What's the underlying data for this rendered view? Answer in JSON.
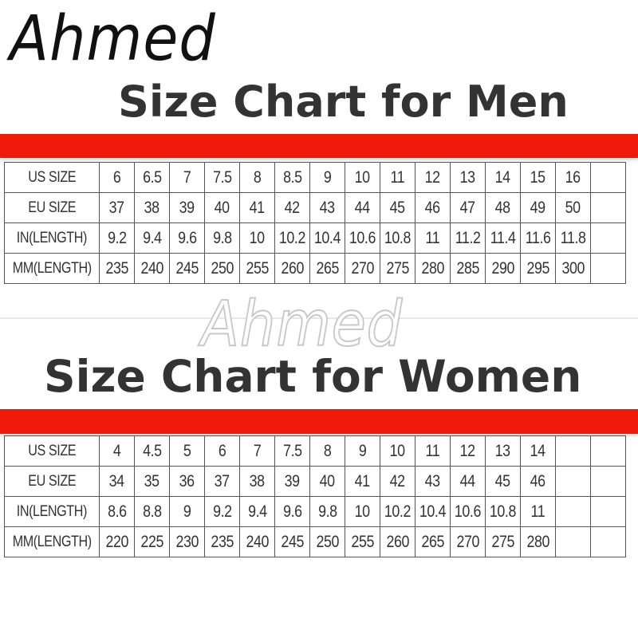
{
  "brand": "Ahmed",
  "watermark": "Ahmed",
  "colors": {
    "accent_bar": "#f01a0a",
    "text": "#333333"
  },
  "men": {
    "title": "Size Chart for Men",
    "rows": [
      {
        "label": "US SIZE",
        "values": [
          "6",
          "6.5",
          "7",
          "7.5",
          "8",
          "8.5",
          "9",
          "10",
          "11",
          "12",
          "13",
          "14",
          "15",
          "16"
        ]
      },
      {
        "label": "EU SIZE",
        "values": [
          "37",
          "38",
          "39",
          "40",
          "41",
          "42",
          "43",
          "44",
          "45",
          "46",
          "47",
          "48",
          "49",
          "50"
        ]
      },
      {
        "label": "IN(LENGTH)",
        "values": [
          "9.2",
          "9.4",
          "9.6",
          "9.8",
          "10",
          "10.2",
          "10.4",
          "10.6",
          "10.8",
          "11",
          "11.2",
          "11.4",
          "11.6",
          "11.8"
        ]
      },
      {
        "label": "MM(LENGTH)",
        "values": [
          "235",
          "240",
          "245",
          "250",
          "255",
          "260",
          "265",
          "270",
          "275",
          "280",
          "285",
          "290",
          "295",
          "300"
        ]
      }
    ]
  },
  "women": {
    "title": "Size Chart for Women",
    "rows": [
      {
        "label": "US SIZE",
        "values": [
          "4",
          "4.5",
          "5",
          "6",
          "7",
          "7.5",
          "8",
          "9",
          "10",
          "11",
          "12",
          "13",
          "14"
        ]
      },
      {
        "label": "EU SIZE",
        "values": [
          "34",
          "35",
          "36",
          "37",
          "38",
          "39",
          "40",
          "41",
          "42",
          "43",
          "44",
          "45",
          "46"
        ]
      },
      {
        "label": "IN(LENGTH)",
        "values": [
          "8.6",
          "8.8",
          "9",
          "9.2",
          "9.4",
          "9.6",
          "9.8",
          "10",
          "10.2",
          "10.4",
          "10.6",
          "10.8",
          "11"
        ]
      },
      {
        "label": "MM(LENGTH)",
        "values": [
          "220",
          "225",
          "230",
          "235",
          "240",
          "245",
          "250",
          "255",
          "260",
          "265",
          "270",
          "275",
          "280"
        ]
      }
    ]
  }
}
